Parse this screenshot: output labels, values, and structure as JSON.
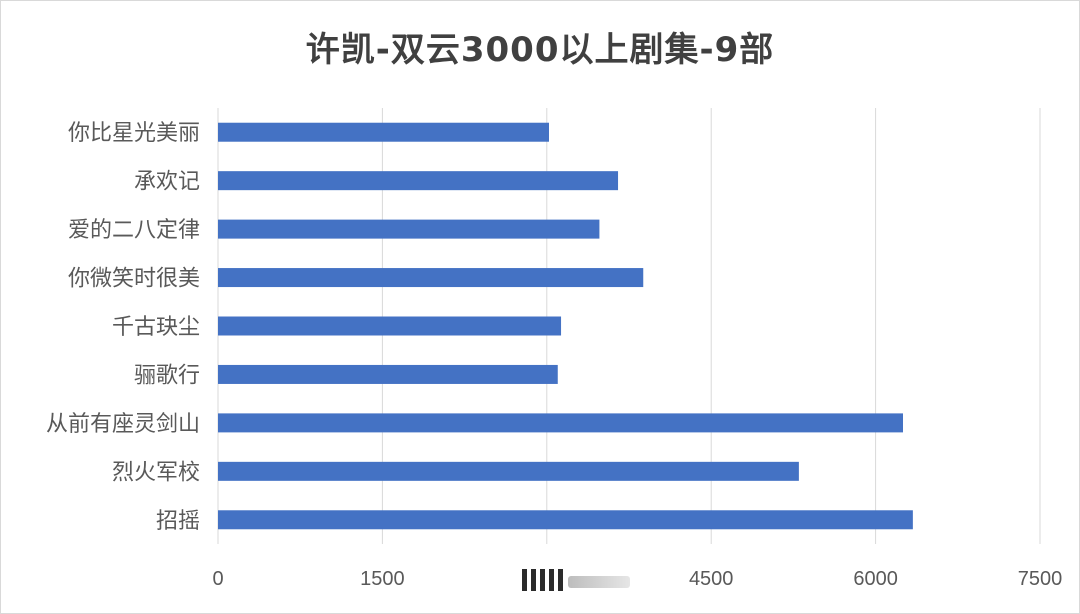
{
  "title": "许凯-双云3000以上剧集-9部",
  "chart_data": {
    "type": "bar",
    "orientation": "horizontal",
    "title": "许凯-双云3000以上剧集-9部",
    "categories": [
      "你比星光美丽",
      "承欢记",
      "爱的二八定律",
      "你微笑时很美",
      "千古玦尘",
      "骊歌行",
      "从前有座灵剑山",
      "烈火军校",
      "招摇"
    ],
    "values": [
      3020,
      3650,
      3480,
      3880,
      3130,
      3100,
      6250,
      5300,
      6340
    ],
    "xlim": [
      0,
      7500
    ],
    "xticks": [
      0,
      1500,
      3000,
      4500,
      6000,
      7500
    ],
    "xtick_labels": [
      "0",
      "1500",
      "",
      "4500",
      "6000",
      "7500"
    ],
    "grid": "vertical",
    "bar_color": "#4472c4",
    "grid_color": "#d9d9d9",
    "xlabel": "",
    "ylabel": ""
  }
}
